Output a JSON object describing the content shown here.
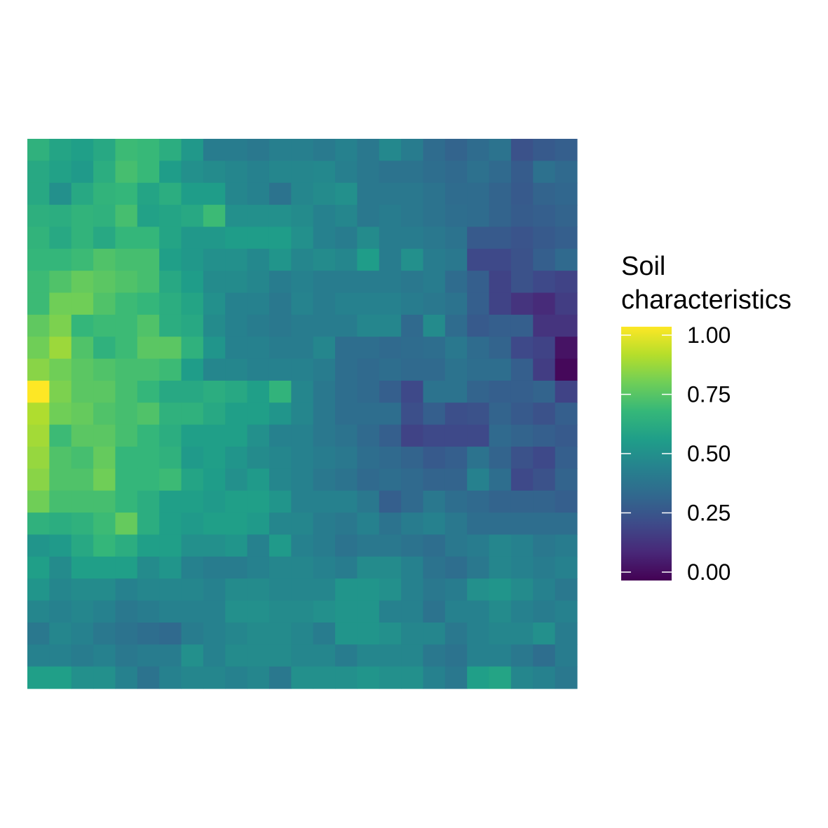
{
  "chart_data": {
    "type": "heatmap",
    "title": "",
    "xlabel": "",
    "ylabel": "",
    "grid": false,
    "axes_visible": false,
    "legend": {
      "title_lines": [
        "Soil",
        "characteristics"
      ],
      "placement": "right",
      "ticks": [
        0,
        0.25,
        0.5,
        0.75,
        1
      ],
      "tick_labels": [
        "0.00",
        "0.25",
        "0.50",
        "0.75",
        "1.00"
      ]
    },
    "colorscale": "viridis",
    "colorscale_stops": [
      "#440154",
      "#482878",
      "#3e4a89",
      "#31688e",
      "#26828e",
      "#1f9e89",
      "#35b779",
      "#6ece58",
      "#b5de2b",
      "#fde725"
    ],
    "value_range": [
      0,
      1
    ],
    "values": [
      [
        0.64,
        0.58,
        0.56,
        0.6,
        0.68,
        0.67,
        0.62,
        0.53,
        0.42,
        0.42,
        0.4,
        0.43,
        0.43,
        0.41,
        0.44,
        0.4,
        0.47,
        0.42,
        0.35,
        0.32,
        0.35,
        0.38,
        0.25,
        0.28,
        0.3
      ],
      [
        0.6,
        0.57,
        0.54,
        0.62,
        0.7,
        0.67,
        0.55,
        0.5,
        0.48,
        0.46,
        0.44,
        0.46,
        0.46,
        0.47,
        0.43,
        0.4,
        0.38,
        0.38,
        0.36,
        0.34,
        0.37,
        0.34,
        0.29,
        0.37,
        0.34
      ],
      [
        0.6,
        0.5,
        0.6,
        0.65,
        0.66,
        0.58,
        0.62,
        0.55,
        0.55,
        0.46,
        0.44,
        0.38,
        0.46,
        0.48,
        0.5,
        0.4,
        0.4,
        0.4,
        0.38,
        0.35,
        0.35,
        0.32,
        0.28,
        0.32,
        0.33
      ],
      [
        0.63,
        0.62,
        0.65,
        0.64,
        0.7,
        0.57,
        0.58,
        0.6,
        0.68,
        0.5,
        0.5,
        0.5,
        0.48,
        0.44,
        0.46,
        0.4,
        0.42,
        0.4,
        0.38,
        0.36,
        0.35,
        0.32,
        0.29,
        0.3,
        0.32
      ],
      [
        0.65,
        0.6,
        0.65,
        0.6,
        0.66,
        0.66,
        0.58,
        0.53,
        0.53,
        0.55,
        0.55,
        0.55,
        0.5,
        0.44,
        0.42,
        0.48,
        0.42,
        0.42,
        0.4,
        0.38,
        0.28,
        0.28,
        0.26,
        0.28,
        0.3
      ],
      [
        0.66,
        0.66,
        0.68,
        0.72,
        0.7,
        0.7,
        0.56,
        0.53,
        0.5,
        0.5,
        0.47,
        0.52,
        0.46,
        0.48,
        0.46,
        0.55,
        0.42,
        0.5,
        0.42,
        0.4,
        0.22,
        0.22,
        0.25,
        0.3,
        0.34
      ],
      [
        0.68,
        0.72,
        0.76,
        0.74,
        0.72,
        0.7,
        0.6,
        0.55,
        0.48,
        0.48,
        0.46,
        0.42,
        0.44,
        0.42,
        0.42,
        0.42,
        0.42,
        0.4,
        0.42,
        0.35,
        0.3,
        0.2,
        0.25,
        0.22,
        0.2
      ],
      [
        0.68,
        0.78,
        0.78,
        0.72,
        0.68,
        0.66,
        0.62,
        0.58,
        0.5,
        0.44,
        0.44,
        0.4,
        0.45,
        0.42,
        0.44,
        0.44,
        0.44,
        0.42,
        0.4,
        0.38,
        0.3,
        0.2,
        0.15,
        0.12,
        0.18
      ],
      [
        0.75,
        0.8,
        0.66,
        0.68,
        0.68,
        0.72,
        0.62,
        0.6,
        0.48,
        0.44,
        0.42,
        0.4,
        0.42,
        0.42,
        0.42,
        0.46,
        0.46,
        0.34,
        0.48,
        0.35,
        0.28,
        0.3,
        0.3,
        0.15,
        0.15
      ],
      [
        0.78,
        0.85,
        0.72,
        0.64,
        0.68,
        0.74,
        0.74,
        0.64,
        0.52,
        0.44,
        0.44,
        0.42,
        0.42,
        0.46,
        0.36,
        0.36,
        0.34,
        0.35,
        0.36,
        0.4,
        0.35,
        0.32,
        0.22,
        0.2,
        0.05
      ],
      [
        0.82,
        0.78,
        0.74,
        0.72,
        0.7,
        0.7,
        0.68,
        0.55,
        0.46,
        0.46,
        0.44,
        0.44,
        0.44,
        0.42,
        0.36,
        0.34,
        0.36,
        0.34,
        0.34,
        0.38,
        0.36,
        0.36,
        0.3,
        0.18,
        0.02
      ],
      [
        1.0,
        0.8,
        0.74,
        0.74,
        0.7,
        0.66,
        0.6,
        0.6,
        0.62,
        0.6,
        0.56,
        0.65,
        0.46,
        0.4,
        0.36,
        0.34,
        0.3,
        0.22,
        0.38,
        0.38,
        0.32,
        0.3,
        0.3,
        0.32,
        0.2
      ],
      [
        0.88,
        0.78,
        0.76,
        0.72,
        0.7,
        0.72,
        0.64,
        0.64,
        0.6,
        0.56,
        0.56,
        0.52,
        0.46,
        0.4,
        0.36,
        0.36,
        0.36,
        0.24,
        0.3,
        0.24,
        0.25,
        0.32,
        0.28,
        0.25,
        0.3
      ],
      [
        0.86,
        0.68,
        0.74,
        0.74,
        0.7,
        0.66,
        0.62,
        0.56,
        0.56,
        0.56,
        0.5,
        0.44,
        0.44,
        0.4,
        0.38,
        0.34,
        0.3,
        0.2,
        0.22,
        0.22,
        0.22,
        0.34,
        0.32,
        0.3,
        0.28
      ],
      [
        0.84,
        0.72,
        0.7,
        0.76,
        0.66,
        0.66,
        0.64,
        0.54,
        0.56,
        0.52,
        0.48,
        0.46,
        0.44,
        0.42,
        0.4,
        0.36,
        0.34,
        0.32,
        0.28,
        0.3,
        0.38,
        0.32,
        0.25,
        0.22,
        0.3
      ],
      [
        0.82,
        0.72,
        0.72,
        0.78,
        0.66,
        0.66,
        0.68,
        0.58,
        0.55,
        0.5,
        0.54,
        0.46,
        0.44,
        0.4,
        0.38,
        0.34,
        0.36,
        0.34,
        0.32,
        0.32,
        0.44,
        0.36,
        0.22,
        0.25,
        0.32
      ],
      [
        0.78,
        0.7,
        0.7,
        0.7,
        0.66,
        0.62,
        0.56,
        0.56,
        0.54,
        0.56,
        0.56,
        0.52,
        0.44,
        0.44,
        0.44,
        0.4,
        0.3,
        0.34,
        0.4,
        0.36,
        0.34,
        0.32,
        0.32,
        0.32,
        0.3
      ],
      [
        0.64,
        0.62,
        0.64,
        0.68,
        0.76,
        0.62,
        0.56,
        0.54,
        0.56,
        0.56,
        0.54,
        0.46,
        0.46,
        0.42,
        0.4,
        0.44,
        0.38,
        0.42,
        0.44,
        0.4,
        0.36,
        0.36,
        0.36,
        0.36,
        0.36
      ],
      [
        0.52,
        0.54,
        0.6,
        0.66,
        0.62,
        0.56,
        0.56,
        0.5,
        0.5,
        0.52,
        0.44,
        0.54,
        0.44,
        0.42,
        0.38,
        0.4,
        0.4,
        0.38,
        0.36,
        0.4,
        0.42,
        0.46,
        0.44,
        0.4,
        0.42
      ],
      [
        0.56,
        0.48,
        0.56,
        0.56,
        0.56,
        0.48,
        0.52,
        0.44,
        0.42,
        0.42,
        0.44,
        0.46,
        0.46,
        0.44,
        0.42,
        0.48,
        0.48,
        0.44,
        0.38,
        0.36,
        0.4,
        0.46,
        0.44,
        0.42,
        0.44
      ],
      [
        0.52,
        0.46,
        0.48,
        0.48,
        0.44,
        0.46,
        0.46,
        0.46,
        0.44,
        0.48,
        0.48,
        0.46,
        0.46,
        0.46,
        0.52,
        0.52,
        0.5,
        0.44,
        0.4,
        0.42,
        0.5,
        0.52,
        0.48,
        0.44,
        0.4
      ],
      [
        0.46,
        0.44,
        0.46,
        0.44,
        0.4,
        0.42,
        0.44,
        0.44,
        0.44,
        0.5,
        0.5,
        0.48,
        0.48,
        0.5,
        0.52,
        0.52,
        0.44,
        0.44,
        0.38,
        0.44,
        0.44,
        0.48,
        0.44,
        0.42,
        0.44
      ],
      [
        0.4,
        0.46,
        0.44,
        0.4,
        0.38,
        0.36,
        0.34,
        0.42,
        0.44,
        0.46,
        0.48,
        0.48,
        0.46,
        0.42,
        0.52,
        0.52,
        0.5,
        0.46,
        0.46,
        0.4,
        0.44,
        0.46,
        0.46,
        0.5,
        0.42
      ],
      [
        0.44,
        0.44,
        0.42,
        0.44,
        0.4,
        0.42,
        0.42,
        0.5,
        0.44,
        0.48,
        0.48,
        0.48,
        0.46,
        0.46,
        0.42,
        0.46,
        0.46,
        0.46,
        0.4,
        0.38,
        0.44,
        0.44,
        0.4,
        0.36,
        0.42
      ],
      [
        0.56,
        0.56,
        0.5,
        0.5,
        0.44,
        0.38,
        0.44,
        0.46,
        0.46,
        0.44,
        0.46,
        0.4,
        0.5,
        0.5,
        0.5,
        0.52,
        0.5,
        0.5,
        0.44,
        0.4,
        0.56,
        0.58,
        0.46,
        0.44,
        0.4
      ]
    ]
  }
}
